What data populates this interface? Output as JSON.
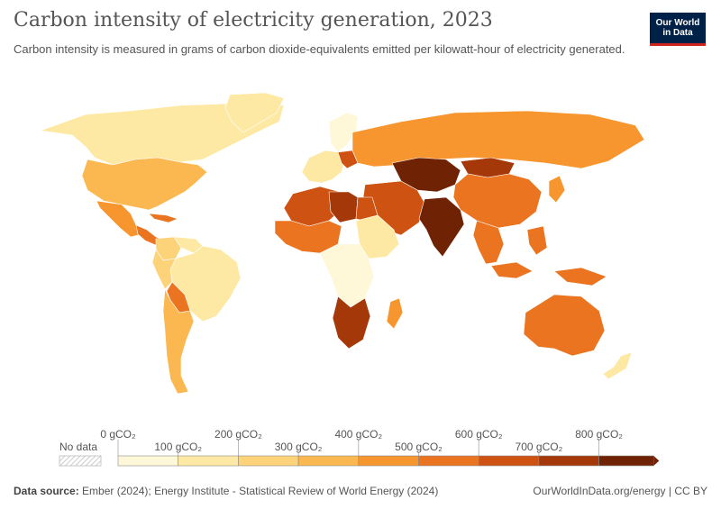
{
  "title": "Carbon intensity of electricity generation, 2023",
  "subtitle": "Carbon intensity is measured in grams of carbon dioxide-equivalents emitted per kilowatt-hour of electricity generated.",
  "logo": {
    "line1": "Our World",
    "line2": "in Data"
  },
  "legend": {
    "no_data_label": "No data",
    "top_ticks": [
      "0 gCO₂",
      "200 gCO₂",
      "400 gCO₂",
      "600 gCO₂",
      "800 gCO₂"
    ],
    "bottom_ticks": [
      "100 gCO₂",
      "300 gCO₂",
      "500 gCO₂",
      "700 gCO₂"
    ],
    "bins": [
      0,
      100,
      200,
      300,
      400,
      500,
      600,
      700,
      800
    ],
    "colors": [
      "#fef7d8",
      "#fee9a4",
      "#fdd37a",
      "#fbb850",
      "#f7962f",
      "#ea7420",
      "#ce5212",
      "#a53808",
      "#6f2304"
    ],
    "no_data_color": "hatched"
  },
  "source": {
    "label": "Data source:",
    "text": "Ember (2024); Energy Institute - Statistical Review of World Energy (2024)"
  },
  "credit": "OurWorldInData.org/energy | CC BY",
  "regions": [
    {
      "name": "Alaska/Canada",
      "value": 130
    },
    {
      "name": "Greenland",
      "value": 150
    },
    {
      "name": "United States",
      "value": 370
    },
    {
      "name": "Mexico",
      "value": 430
    },
    {
      "name": "Central America & Caribbean",
      "value": 560
    },
    {
      "name": "Colombia",
      "value": 200
    },
    {
      "name": "Venezuela",
      "value": 180
    },
    {
      "name": "Brazil",
      "value": 100
    },
    {
      "name": "Peru",
      "value": 250
    },
    {
      "name": "Bolivia",
      "value": 560
    },
    {
      "name": "Argentina/Chile",
      "value": 370
    },
    {
      "name": "Scandinavia",
      "value": 40
    },
    {
      "name": "Western Europe",
      "value": 120
    },
    {
      "name": "Poland",
      "value": 660
    },
    {
      "name": "Russia",
      "value": 440
    },
    {
      "name": "Kazakhstan/Central Asia",
      "value": 830
    },
    {
      "name": "Mongolia",
      "value": 750
    },
    {
      "name": "China",
      "value": 580
    },
    {
      "name": "Japan/Korea",
      "value": 480
    },
    {
      "name": "North Africa",
      "value": 620
    },
    {
      "name": "Libya",
      "value": 820
    },
    {
      "name": "Egypt",
      "value": 580
    },
    {
      "name": "Middle East",
      "value": 690
    },
    {
      "name": "India",
      "value": 710
    },
    {
      "name": "Southeast Asia",
      "value": 600
    },
    {
      "name": "West Africa",
      "value": 530
    },
    {
      "name": "East Africa",
      "value": 150
    },
    {
      "name": "Central Africa",
      "value": 80
    },
    {
      "name": "Southern Africa",
      "value": 700
    },
    {
      "name": "Madagascar",
      "value": 480
    },
    {
      "name": "Australia",
      "value": 550
    },
    {
      "name": "New Zealand",
      "value": 110
    }
  ]
}
